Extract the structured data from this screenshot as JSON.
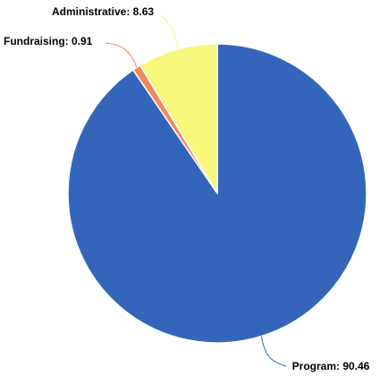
{
  "chart_data": {
    "type": "pie",
    "start_angle_deg": 0,
    "direction": "clockwise",
    "legend": "none",
    "slices": [
      {
        "label": "Program",
        "value": 90.46,
        "color": "#3366BB",
        "label_text": "Program: 90.46"
      },
      {
        "label": "Fundraising",
        "value": 0.91,
        "color": "#F2875C",
        "label_text": "Fundraising: 0.91"
      },
      {
        "label": "Administrative",
        "value": 8.63,
        "color": "#F7F77A",
        "label_text": "Administrative: 8.63"
      }
    ]
  }
}
